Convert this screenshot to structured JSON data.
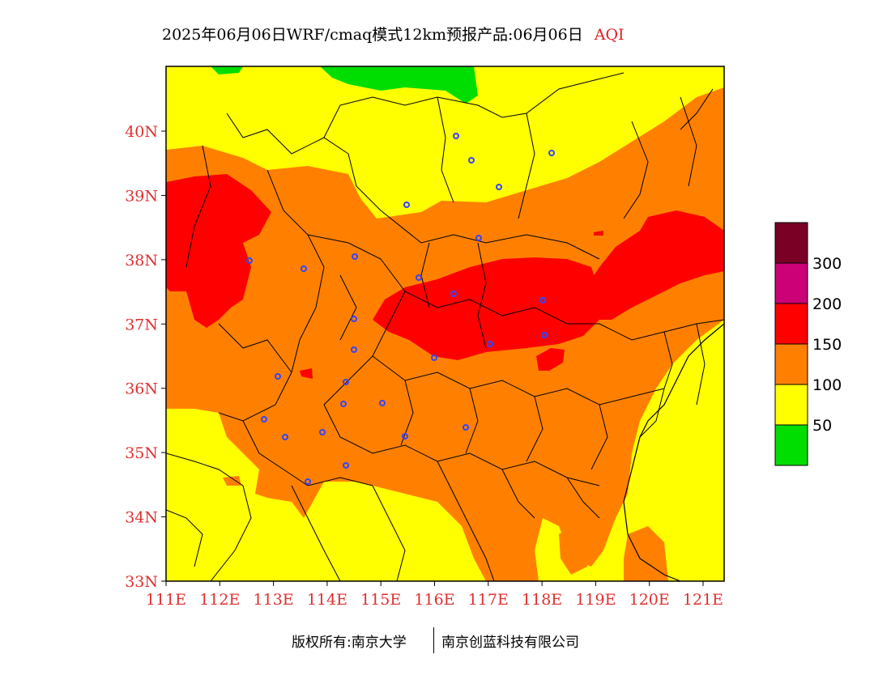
{
  "title": {
    "main": "2025年06月06日WRF/cmaq模式12km预报产品:06月06日",
    "product": "AQI"
  },
  "map": {
    "lat_ticks": [
      "40N",
      "39N",
      "38N",
      "37N",
      "36N",
      "35N",
      "34N",
      "33N"
    ],
    "lon_ticks": [
      "111E",
      "112E",
      "113E",
      "114E",
      "115E",
      "116E",
      "117E",
      "118E",
      "119E",
      "120E",
      "121E"
    ],
    "level_colors": {
      "good": "#00dd00",
      "moderate": "#ffff00",
      "unhealthy_sensitive": "#ff8000",
      "unhealthy": "#ff0000",
      "very_unhealthy": "#cc0077",
      "hazardous": "#7a0025"
    }
  },
  "legend": {
    "labels": [
      "300",
      "200",
      "150",
      "100",
      "50"
    ]
  },
  "footer": {
    "copyright": "版权所有:南京大学",
    "company": "南京创蓝科技有限公司"
  }
}
